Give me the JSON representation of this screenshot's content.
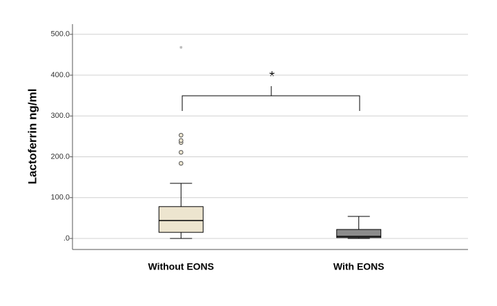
{
  "chart_data": {
    "type": "box",
    "y_label": "Lactoferrin ng/ml",
    "categories": [
      "Without EONS",
      "With EONS"
    ],
    "boxes": [
      {
        "min": 0,
        "q1": 15,
        "median": 44,
        "q3": 78,
        "max": 135,
        "outliers": [
          184,
          211,
          235,
          240,
          253
        ],
        "extremes": [
          468
        ],
        "color": "#ede5cf"
      },
      {
        "min": 0,
        "q1": 2,
        "median": 5,
        "q3": 22,
        "max": 54,
        "outliers": [],
        "extremes": [],
        "color": "#8c8c8c"
      }
    ],
    "ylim": [
      -27,
      525
    ],
    "yticks": [
      {
        "value": 0,
        "label": ".0"
      },
      {
        "value": 100,
        "label": "100.0"
      },
      {
        "value": 200,
        "label": "200.0"
      },
      {
        "value": 300,
        "label": "300.0"
      },
      {
        "value": 400,
        "label": "400.0"
      },
      {
        "value": 500,
        "label": "500.0"
      }
    ],
    "grid": true,
    "annotation": "*"
  }
}
